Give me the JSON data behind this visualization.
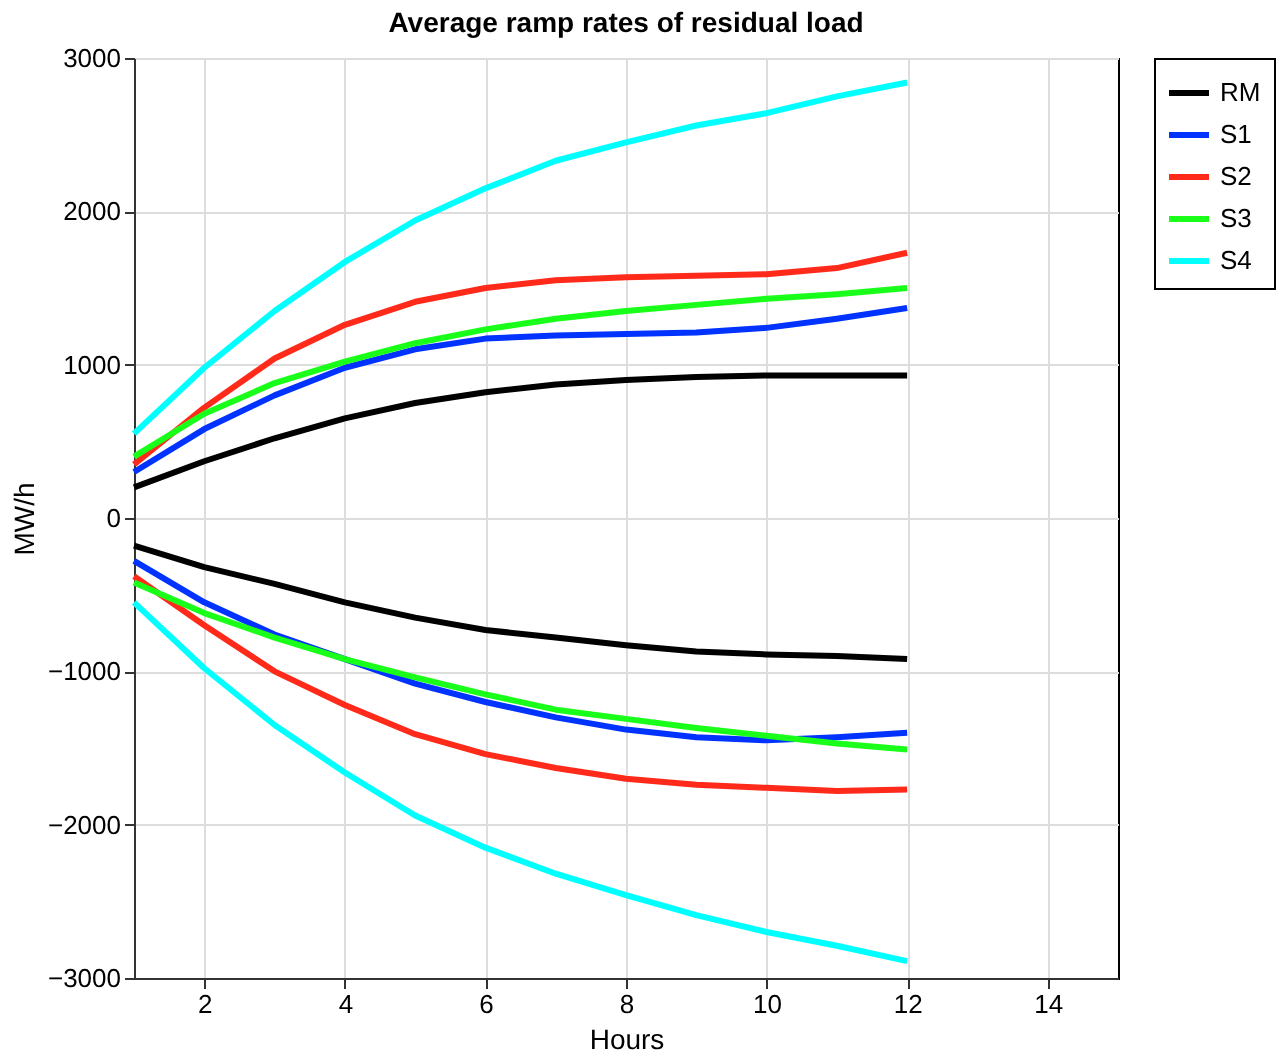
{
  "chart_data": {
    "type": "line",
    "title": "Average ramp rates of residual load",
    "xlabel": "Hours",
    "ylabel": "MW/h",
    "x": [
      1,
      2,
      3,
      4,
      5,
      6,
      7,
      8,
      9,
      10,
      11,
      12
    ],
    "xlim": [
      1,
      15
    ],
    "xticks": [
      2,
      4,
      6,
      8,
      10,
      12,
      14
    ],
    "ylim": [
      -3000,
      3000
    ],
    "yticks": [
      -3000,
      -2000,
      -1000,
      0,
      1000,
      2000,
      3000
    ],
    "grid": true,
    "legend": "right",
    "marker": "none",
    "line_style": "solid",
    "series": [
      {
        "name": "RM",
        "color": "#000000",
        "values": [
          200,
          370,
          520,
          650,
          750,
          820,
          870,
          900,
          920,
          930,
          930,
          930
        ]
      },
      {
        "name": "S1",
        "color": "#0033ff",
        "values": [
          300,
          580,
          800,
          980,
          1100,
          1170,
          1190,
          1200,
          1210,
          1240,
          1300,
          1370
        ]
      },
      {
        "name": "S2",
        "color": "#ff2a1a",
        "values": [
          350,
          720,
          1040,
          1260,
          1410,
          1500,
          1550,
          1570,
          1580,
          1590,
          1630,
          1730
        ]
      },
      {
        "name": "S3",
        "color": "#1aff1a",
        "values": [
          400,
          680,
          880,
          1020,
          1140,
          1230,
          1300,
          1350,
          1390,
          1430,
          1460,
          1500
        ]
      },
      {
        "name": "S4",
        "color": "#00ffff",
        "values": [
          550,
          980,
          1350,
          1670,
          1940,
          2150,
          2330,
          2450,
          2560,
          2640,
          2750,
          2840
        ]
      },
      {
        "color": "#000000",
        "values": [
          -180,
          -320,
          -430,
          -550,
          -650,
          -730,
          -780,
          -830,
          -870,
          -890,
          -900,
          -920
        ]
      },
      {
        "color": "#0033ff",
        "values": [
          -280,
          -550,
          -760,
          -920,
          -1080,
          -1200,
          -1300,
          -1380,
          -1430,
          -1450,
          -1430,
          -1400
        ]
      },
      {
        "color": "#ff2a1a",
        "values": [
          -380,
          -700,
          -1000,
          -1220,
          -1410,
          -1540,
          -1630,
          -1700,
          -1740,
          -1760,
          -1780,
          -1770
        ]
      },
      {
        "color": "#1aff1a",
        "values": [
          -420,
          -620,
          -780,
          -920,
          -1040,
          -1150,
          -1250,
          -1310,
          -1370,
          -1420,
          -1470,
          -1510
        ]
      },
      {
        "color": "#00ffff",
        "values": [
          -550,
          -980,
          -1350,
          -1660,
          -1940,
          -2150,
          -2320,
          -2460,
          -2590,
          -2700,
          -2790,
          -2890
        ]
      }
    ]
  }
}
